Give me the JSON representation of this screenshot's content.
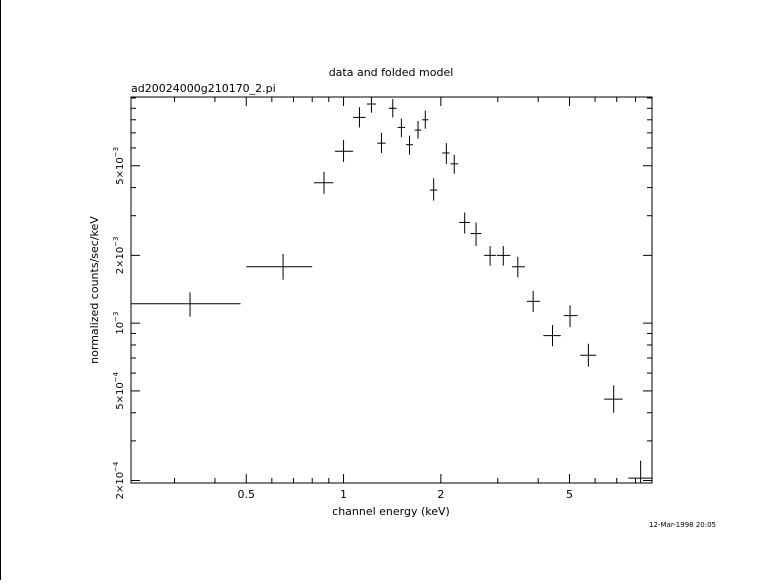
{
  "chart_data": {
    "type": "scatter",
    "title": "data and folded model",
    "subtitle": "ad20024000g210170_2.pi",
    "xlabel": "channel energy (keV)",
    "ylabel": "normalized counts/sec/keV",
    "footer": "12-Mar-1998 20:05",
    "x_scale": "log",
    "y_scale": "log",
    "xlim": [
      0.22,
      9.0
    ],
    "ylim": [
      0.000195,
      0.0101
    ],
    "x_ticks": [
      {
        "value": 0.5,
        "label": "0.5"
      },
      {
        "value": 1,
        "label": "1"
      },
      {
        "value": 2,
        "label": "2"
      },
      {
        "value": 5,
        "label": "5"
      }
    ],
    "y_ticks": [
      {
        "value": 0.0002,
        "mantissa": "2×10",
        "exp": "−4"
      },
      {
        "value": 0.0005,
        "mantissa": "5×10",
        "exp": "−4"
      },
      {
        "value": 0.001,
        "mantissa": "10",
        "exp": "−3"
      },
      {
        "value": 0.002,
        "mantissa": "2×10",
        "exp": "−3"
      },
      {
        "value": 0.005,
        "mantissa": "5×10",
        "exp": "−3"
      }
    ],
    "points": [
      {
        "x": 0.335,
        "xlo": 0.22,
        "xhi": 0.48,
        "y": 0.00122,
        "ylo": 0.00107,
        "yhi": 0.00137
      },
      {
        "x": 0.65,
        "xlo": 0.5,
        "xhi": 0.8,
        "y": 0.00178,
        "ylo": 0.00156,
        "yhi": 0.00203
      },
      {
        "x": 0.87,
        "xlo": 0.81,
        "xhi": 0.93,
        "y": 0.0042,
        "ylo": 0.00375,
        "yhi": 0.0047
      },
      {
        "x": 1.0,
        "xlo": 0.94,
        "xhi": 1.07,
        "y": 0.0058,
        "ylo": 0.0052,
        "yhi": 0.0065
      },
      {
        "x": 1.12,
        "xlo": 1.07,
        "xhi": 1.17,
        "y": 0.0082,
        "ylo": 0.0074,
        "yhi": 0.0091
      },
      {
        "x": 1.22,
        "xlo": 1.18,
        "xhi": 1.26,
        "y": 0.0094,
        "ylo": 0.0086,
        "yhi": 0.0101
      },
      {
        "x": 1.31,
        "xlo": 1.27,
        "xhi": 1.35,
        "y": 0.0063,
        "ylo": 0.0057,
        "yhi": 0.007
      },
      {
        "x": 1.42,
        "xlo": 1.38,
        "xhi": 1.46,
        "y": 0.009,
        "ylo": 0.0082,
        "yhi": 0.0099
      },
      {
        "x": 1.51,
        "xlo": 1.47,
        "xhi": 1.55,
        "y": 0.0074,
        "ylo": 0.0067,
        "yhi": 0.0081
      },
      {
        "x": 1.6,
        "xlo": 1.56,
        "xhi": 1.64,
        "y": 0.0062,
        "ylo": 0.0056,
        "yhi": 0.0068
      },
      {
        "x": 1.7,
        "xlo": 1.66,
        "xhi": 1.74,
        "y": 0.0072,
        "ylo": 0.0066,
        "yhi": 0.0079
      },
      {
        "x": 1.79,
        "xlo": 1.75,
        "xhi": 1.83,
        "y": 0.008,
        "ylo": 0.0073,
        "yhi": 0.0088
      },
      {
        "x": 1.9,
        "xlo": 1.85,
        "xhi": 1.95,
        "y": 0.0039,
        "ylo": 0.0035,
        "yhi": 0.0044
      },
      {
        "x": 2.08,
        "xlo": 2.02,
        "xhi": 2.13,
        "y": 0.0057,
        "ylo": 0.0051,
        "yhi": 0.0063
      },
      {
        "x": 2.2,
        "xlo": 2.14,
        "xhi": 2.26,
        "y": 0.0051,
        "ylo": 0.0046,
        "yhi": 0.0056
      },
      {
        "x": 2.37,
        "xlo": 2.28,
        "xhi": 2.46,
        "y": 0.0028,
        "ylo": 0.0025,
        "yhi": 0.0031
      },
      {
        "x": 2.57,
        "xlo": 2.47,
        "xhi": 2.67,
        "y": 0.0025,
        "ylo": 0.0022,
        "yhi": 0.0028
      },
      {
        "x": 2.84,
        "xlo": 2.72,
        "xhi": 2.96,
        "y": 0.002,
        "ylo": 0.0018,
        "yhi": 0.0022
      },
      {
        "x": 3.12,
        "xlo": 2.98,
        "xhi": 3.28,
        "y": 0.002,
        "ylo": 0.0018,
        "yhi": 0.0022
      },
      {
        "x": 3.46,
        "xlo": 3.32,
        "xhi": 3.64,
        "y": 0.00178,
        "ylo": 0.0016,
        "yhi": 0.00197
      },
      {
        "x": 3.86,
        "xlo": 3.69,
        "xhi": 4.05,
        "y": 0.00125,
        "ylo": 0.00112,
        "yhi": 0.00139
      },
      {
        "x": 4.43,
        "xlo": 4.15,
        "xhi": 4.7,
        "y": 0.00088,
        "ylo": 0.00079,
        "yhi": 0.00098
      },
      {
        "x": 5.02,
        "xlo": 4.8,
        "xhi": 5.3,
        "y": 0.00108,
        "ylo": 0.00096,
        "yhi": 0.0012
      },
      {
        "x": 5.72,
        "xlo": 5.4,
        "xhi": 6.05,
        "y": 0.00072,
        "ylo": 0.00064,
        "yhi": 0.00081
      },
      {
        "x": 6.85,
        "xlo": 6.4,
        "xhi": 7.3,
        "y": 0.00046,
        "ylo": 0.0004,
        "yhi": 0.00053
      },
      {
        "x": 8.3,
        "xlo": 7.6,
        "xhi": 9.0,
        "y": 0.000205,
        "ylo": 0.000195,
        "yhi": 0.000245
      }
    ]
  }
}
